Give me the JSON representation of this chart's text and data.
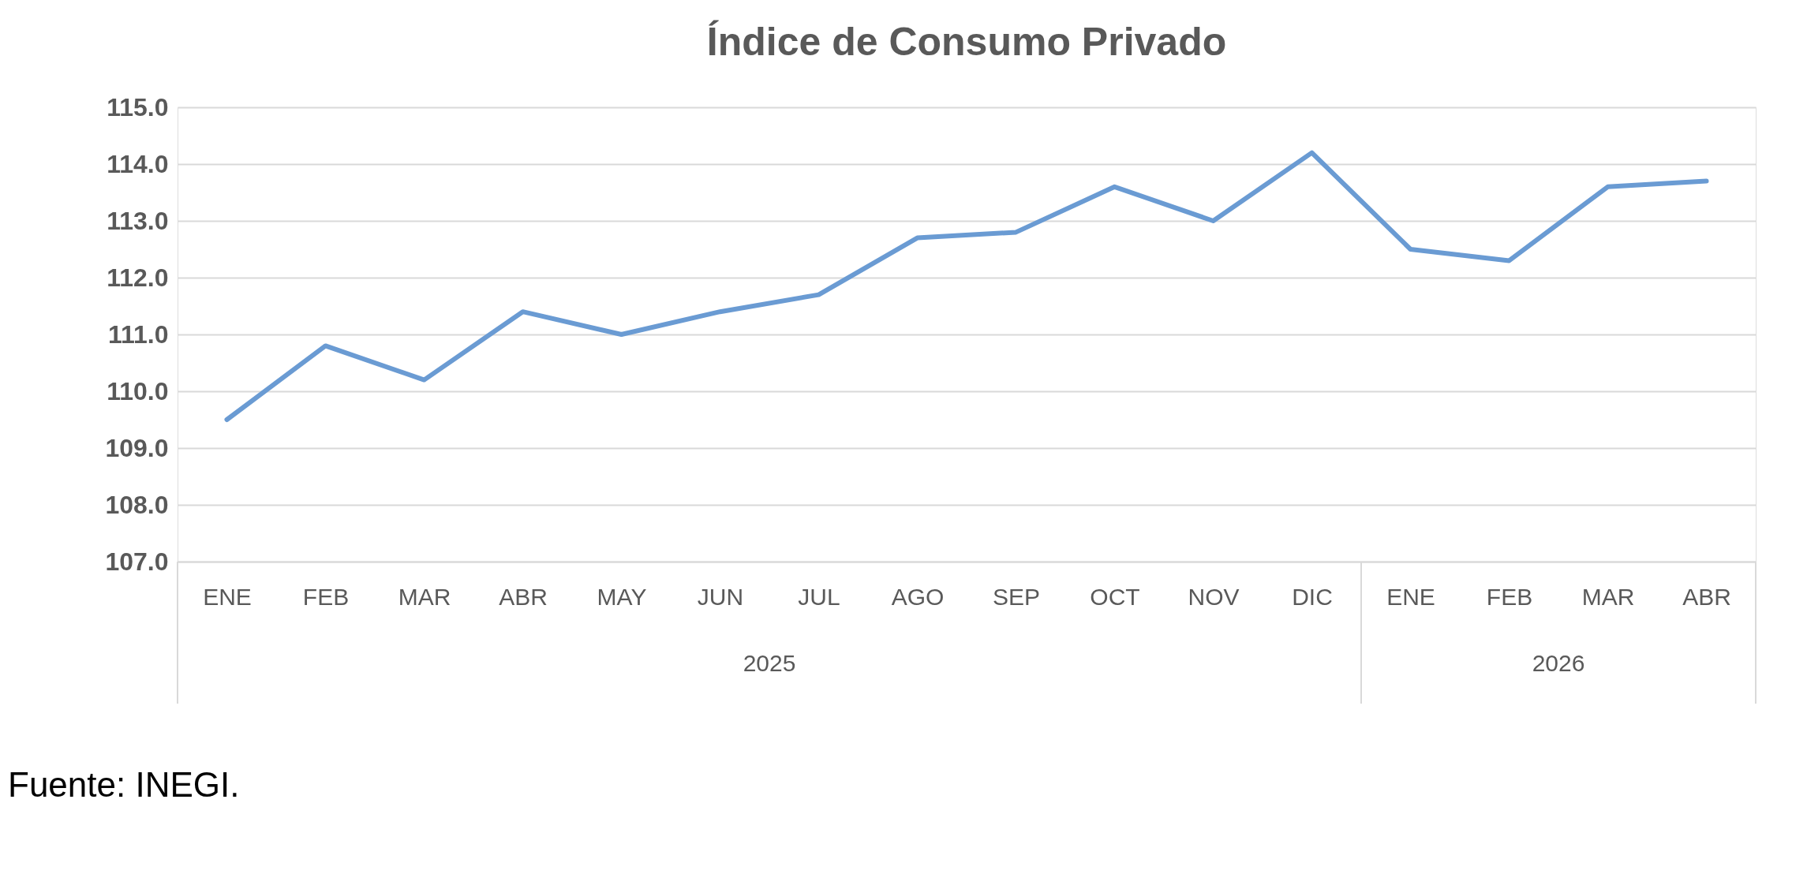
{
  "chart_data": {
    "type": "line",
    "title": "Índice de Consumo Privado",
    "categories": [
      "ENE",
      "FEB",
      "MAR",
      "ABR",
      "MAY",
      "JUN",
      "JUL",
      "AGO",
      "SEP",
      "OCT",
      "NOV",
      "DIC",
      "ENE",
      "FEB",
      "MAR",
      "ABR"
    ],
    "series": [
      {
        "color": "#6a9bd3",
        "values": [
          109.5,
          110.8,
          110.2,
          111.4,
          111.0,
          111.4,
          111.7,
          112.7,
          112.8,
          113.6,
          113.0,
          114.2,
          112.5,
          112.3,
          113.6,
          113.7
        ]
      }
    ],
    "ylim": [
      107,
      115
    ],
    "yticks": [
      {
        "value": 107,
        "label": "107.0"
      },
      {
        "value": 108,
        "label": "108.0"
      },
      {
        "value": 109,
        "label": "109.0"
      },
      {
        "value": 110,
        "label": "110.0"
      },
      {
        "value": 111,
        "label": "111.0"
      },
      {
        "value": 112,
        "label": "112.0"
      },
      {
        "value": 113,
        "label": "113.0"
      },
      {
        "value": 114,
        "label": "114.0"
      },
      {
        "value": 115,
        "label": "115.0"
      }
    ],
    "grid": "y",
    "marker": "none",
    "line_style": "solid",
    "annotations": [
      "2025",
      "2026",
      "Fuente: INEGI."
    ]
  }
}
